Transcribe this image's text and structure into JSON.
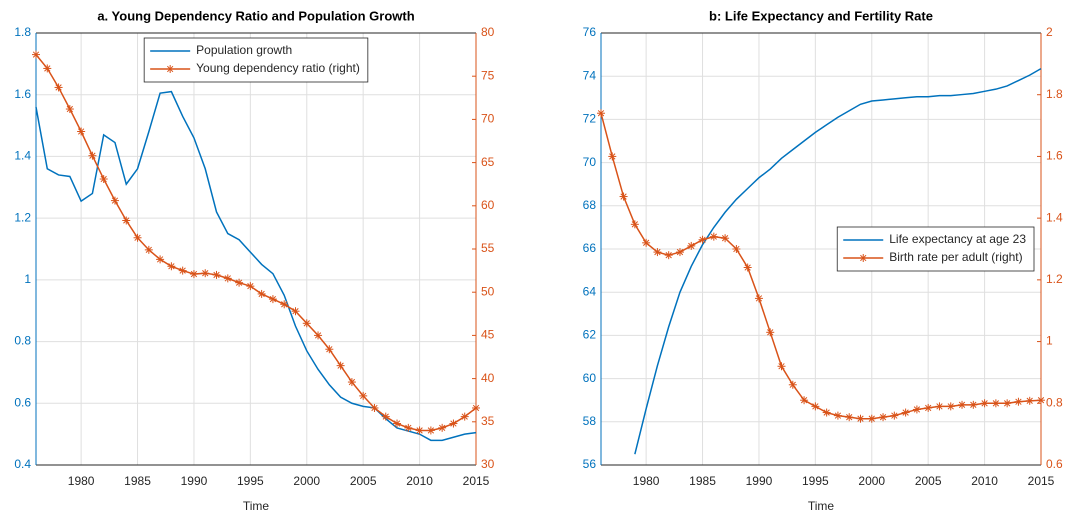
{
  "chart_data": [
    {
      "type": "line",
      "title": "a. Young Dependency Ratio and Population Growth",
      "xlabel": "Time",
      "x": [
        1976,
        1977,
        1978,
        1979,
        1980,
        1981,
        1982,
        1983,
        1984,
        1985,
        1986,
        1987,
        1988,
        1989,
        1990,
        1991,
        1992,
        1993,
        1994,
        1995,
        1996,
        1997,
        1998,
        1999,
        2000,
        2001,
        2002,
        2003,
        2004,
        2005,
        2006,
        2007,
        2008,
        2009,
        2010,
        2011,
        2012,
        2013,
        2014,
        2015
      ],
      "xlim": [
        1976,
        2015
      ],
      "xticks": [
        1980,
        1985,
        1990,
        1995,
        2000,
        2005,
        2010,
        2015
      ],
      "ylim": [
        0.4,
        1.8
      ],
      "yticks": [
        0.4,
        0.6,
        0.8,
        1,
        1.2,
        1.4,
        1.6,
        1.8
      ],
      "y2lim": [
        30,
        80
      ],
      "y2ticks": [
        30,
        35,
        40,
        45,
        50,
        55,
        60,
        65,
        70,
        75,
        80
      ],
      "grid": true,
      "legend": "upper center",
      "series": [
        {
          "name": "Population growth",
          "color": "#0072BD",
          "axis": "y",
          "values": [
            1.56,
            1.36,
            1.34,
            1.335,
            1.255,
            1.28,
            1.47,
            1.445,
            1.31,
            1.36,
            1.48,
            1.605,
            1.61,
            1.53,
            1.46,
            1.36,
            1.22,
            1.15,
            1.13,
            1.09,
            1.05,
            1.02,
            0.95,
            0.85,
            0.77,
            0.71,
            0.66,
            0.62,
            0.6,
            0.59,
            0.585,
            0.55,
            0.52,
            0.51,
            0.5,
            0.48,
            0.48,
            0.49,
            0.5,
            0.505
          ]
        },
        {
          "name": "Young dependency ratio (right)",
          "color": "#D95319",
          "axis": "y2",
          "marker": "asterisk",
          "values": [
            77.5,
            75.9,
            73.7,
            71.2,
            68.6,
            65.8,
            63.1,
            60.6,
            58.3,
            56.3,
            54.9,
            53.8,
            53.0,
            52.5,
            52.1,
            52.2,
            52.0,
            51.6,
            51.1,
            50.7,
            49.8,
            49.2,
            48.6,
            47.8,
            46.4,
            45.0,
            43.4,
            41.5,
            39.6,
            38.0,
            36.6,
            35.6,
            34.8,
            34.3,
            34.0,
            34.0,
            34.3,
            34.8,
            35.6,
            36.6
          ]
        }
      ]
    },
    {
      "type": "line",
      "title": "b: Life Expectancy and Fertility Rate",
      "xlabel": "Time",
      "x": [
        1976,
        1977,
        1978,
        1979,
        1980,
        1981,
        1982,
        1983,
        1984,
        1985,
        1986,
        1987,
        1988,
        1989,
        1990,
        1991,
        1992,
        1993,
        1994,
        1995,
        1996,
        1997,
        1998,
        1999,
        2000,
        2001,
        2002,
        2003,
        2004,
        2005,
        2006,
        2007,
        2008,
        2009,
        2010,
        2011,
        2012,
        2013,
        2014,
        2015
      ],
      "xlim": [
        1976,
        2015
      ],
      "xticks": [
        1980,
        1985,
        1990,
        1995,
        2000,
        2005,
        2010,
        2015
      ],
      "ylim": [
        56,
        76
      ],
      "yticks": [
        56,
        58,
        60,
        62,
        64,
        66,
        68,
        70,
        72,
        74,
        76
      ],
      "y2lim": [
        0.6,
        2
      ],
      "y2ticks": [
        0.6,
        0.8,
        1,
        1.2,
        1.4,
        1.6,
        1.8,
        2
      ],
      "grid": true,
      "legend": "center right",
      "series": [
        {
          "name": "Life expectancy at age 23",
          "color": "#0072BD",
          "axis": "y",
          "values": [
            null,
            null,
            null,
            56.5,
            58.6,
            60.6,
            62.4,
            64.0,
            65.2,
            66.2,
            67.0,
            67.7,
            68.3,
            68.8,
            69.3,
            69.7,
            70.2,
            70.6,
            71.0,
            71.4,
            71.75,
            72.1,
            72.4,
            72.7,
            72.85,
            72.9,
            72.95,
            73.0,
            73.05,
            73.05,
            73.1,
            73.1,
            73.15,
            73.2,
            73.3,
            73.4,
            73.55,
            73.8,
            74.05,
            74.35
          ]
        },
        {
          "name": "Birth rate per adult (right)",
          "color": "#D95319",
          "axis": "y2",
          "marker": "asterisk",
          "values": [
            1.74,
            1.6,
            1.47,
            1.38,
            1.32,
            1.29,
            1.28,
            1.29,
            1.31,
            1.33,
            1.34,
            1.335,
            1.3,
            1.24,
            1.14,
            1.03,
            0.92,
            0.86,
            0.81,
            0.79,
            0.77,
            0.76,
            0.755,
            0.75,
            0.75,
            0.755,
            0.76,
            0.77,
            0.78,
            0.785,
            0.79,
            0.79,
            0.795,
            0.795,
            0.8,
            0.8,
            0.8,
            0.805,
            0.808,
            0.81
          ]
        }
      ]
    }
  ]
}
